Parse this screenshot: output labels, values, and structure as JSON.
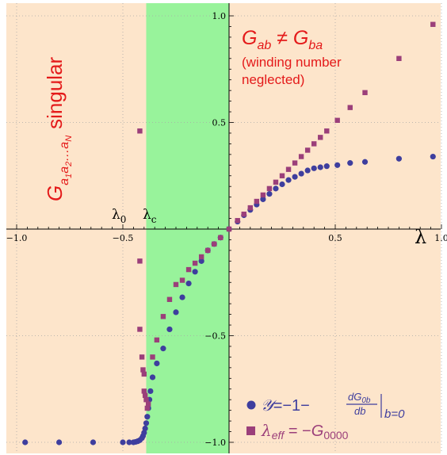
{
  "chart_data": {
    "type": "scatter",
    "xlim": [
      -1.0,
      1.0
    ],
    "ylim": [
      -1.0,
      1.0
    ],
    "grid": true,
    "xticks": [
      {
        "v": -1.0,
        "label": "−1.0"
      },
      {
        "v": -0.5,
        "label": "−0.5"
      },
      {
        "v": 0.5,
        "label": "0.5"
      },
      {
        "v": 1.0,
        "label": "1.0"
      }
    ],
    "yticks": [
      {
        "v": 1.0,
        "label": "1.0"
      },
      {
        "v": 0.5,
        "label": "0.5"
      },
      {
        "v": -0.5,
        "label": "−0.5"
      },
      {
        "v": -1.0,
        "label": "−1.0"
      }
    ],
    "xlabel": "λ",
    "regions": {
      "singular_max_x": -0.39,
      "lambda_c": -0.39,
      "highlight_band": [
        -0.39,
        0.0
      ]
    },
    "markers": {
      "lambda0": {
        "x": -0.45,
        "label": "λ",
        "sub": "0"
      },
      "lambdac": {
        "x": -0.38,
        "label": "λ",
        "sub": "c"
      }
    },
    "annotations": {
      "g_neq_left": "G",
      "g_neq_left_sub": "ab",
      "g_neq_op": " ≠ ",
      "g_neq_right": "G",
      "g_neq_right_sub": "ba",
      "note_line1": "(winding number",
      "note_line2": "neglected)",
      "singular_base": "G",
      "singular_sub": "a",
      "singular_sub1": "1",
      "singular_a2": "a",
      "singular_sub2": "2",
      "singular_dots": "…a",
      "singular_subN": "N",
      "singular_word": "singular"
    },
    "legend": {
      "position": "bottom-right",
      "series1": {
        "y_script": "𝒴",
        "eq": "=−",
        "one": "1",
        "minus": "−",
        "numer": "dG",
        "numer_sub": "0b",
        "denom": "db",
        "cond": "b=0"
      },
      "series2": {
        "lambda": "λ",
        "lambda_sub": "eff",
        "eq": " = −",
        "g": "G",
        "g_sub": "0000"
      }
    },
    "colors": {
      "circle": "#3e3e9e",
      "square": "#9b3f7a",
      "background": "#fde5cb",
      "band": "#98f39b",
      "annotation": "#e41a1a",
      "grid": "#a8a8a8"
    },
    "series": [
      {
        "marker": "circle",
        "points": [
          [
            -0.96,
            -1.0
          ],
          [
            -0.8,
            -1.0
          ],
          [
            -0.64,
            -1.0
          ],
          [
            -0.5,
            -1.0
          ],
          [
            -0.47,
            -1.0
          ],
          [
            -0.45,
            -1.0
          ],
          [
            -0.44,
            -0.998
          ],
          [
            -0.43,
            -0.995
          ],
          [
            -0.42,
            -0.99
          ],
          [
            -0.41,
            -0.98
          ],
          [
            -0.405,
            -0.97
          ],
          [
            -0.4,
            -0.955
          ],
          [
            -0.395,
            -0.935
          ],
          [
            -0.39,
            -0.91
          ],
          [
            -0.385,
            -0.88
          ],
          [
            -0.38,
            -0.84
          ],
          [
            -0.375,
            -0.8
          ],
          [
            -0.37,
            -0.76
          ],
          [
            -0.36,
            -0.695
          ],
          [
            -0.34,
            -0.63
          ],
          [
            -0.31,
            -0.56
          ],
          [
            -0.28,
            -0.47
          ],
          [
            -0.25,
            -0.39
          ],
          [
            -0.22,
            -0.32
          ],
          [
            -0.19,
            -0.255
          ],
          [
            -0.16,
            -0.2
          ],
          [
            -0.13,
            -0.15
          ],
          [
            -0.1,
            -0.1
          ],
          [
            -0.07,
            -0.07
          ],
          [
            -0.04,
            -0.04
          ],
          [
            0.0,
            0.0
          ],
          [
            0.04,
            0.035
          ],
          [
            0.07,
            0.065
          ],
          [
            0.1,
            0.09
          ],
          [
            0.13,
            0.115
          ],
          [
            0.16,
            0.14
          ],
          [
            0.19,
            0.165
          ],
          [
            0.22,
            0.19
          ],
          [
            0.25,
            0.21
          ],
          [
            0.28,
            0.23
          ],
          [
            0.31,
            0.245
          ],
          [
            0.34,
            0.26
          ],
          [
            0.37,
            0.275
          ],
          [
            0.4,
            0.285
          ],
          [
            0.43,
            0.29
          ],
          [
            0.46,
            0.295
          ],
          [
            0.51,
            0.3
          ],
          [
            0.57,
            0.31
          ],
          [
            0.64,
            0.315
          ],
          [
            0.8,
            0.33
          ],
          [
            0.96,
            0.34
          ]
        ]
      },
      {
        "marker": "square",
        "points": [
          [
            -0.42,
            0.46
          ],
          [
            -0.42,
            -0.15
          ],
          [
            -0.42,
            -0.47
          ],
          [
            -0.41,
            -0.6
          ],
          [
            -0.405,
            -0.66
          ],
          [
            -0.4,
            -0.68
          ],
          [
            -0.4,
            -0.76
          ],
          [
            -0.395,
            -0.78
          ],
          [
            -0.39,
            -0.8
          ],
          [
            -0.385,
            -0.84
          ],
          [
            -0.38,
            -0.82
          ],
          [
            -0.36,
            -0.6
          ],
          [
            -0.34,
            -0.52
          ],
          [
            -0.31,
            -0.41
          ],
          [
            -0.28,
            -0.33
          ],
          [
            -0.25,
            -0.26
          ],
          [
            -0.22,
            -0.24
          ],
          [
            -0.19,
            -0.19
          ],
          [
            -0.16,
            -0.16
          ],
          [
            -0.13,
            -0.13
          ],
          [
            -0.1,
            -0.1
          ],
          [
            -0.07,
            -0.07
          ],
          [
            -0.04,
            -0.04
          ],
          [
            0.0,
            0.0
          ],
          [
            0.04,
            0.04
          ],
          [
            0.07,
            0.07
          ],
          [
            0.1,
            0.1
          ],
          [
            0.13,
            0.13
          ],
          [
            0.16,
            0.16
          ],
          [
            0.19,
            0.19
          ],
          [
            0.22,
            0.22
          ],
          [
            0.25,
            0.25
          ],
          [
            0.28,
            0.28
          ],
          [
            0.31,
            0.31
          ],
          [
            0.34,
            0.34
          ],
          [
            0.37,
            0.37
          ],
          [
            0.4,
            0.4
          ],
          [
            0.43,
            0.43
          ],
          [
            0.46,
            0.46
          ],
          [
            0.51,
            0.51
          ],
          [
            0.57,
            0.57
          ],
          [
            0.64,
            0.64
          ],
          [
            0.8,
            0.8
          ],
          [
            0.96,
            0.96
          ]
        ]
      }
    ]
  }
}
